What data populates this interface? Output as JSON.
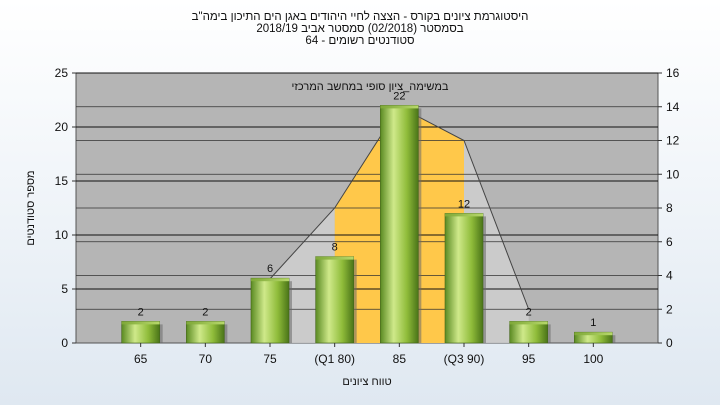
{
  "chart_data": {
    "type": "bar",
    "title_lines": [
      "היסטוגרמת ציונים בקורס - הצצה לחיי היהודים באגן הים התיכון בימה\"ב",
      "בסמסטר  (02/2018)  סמסטר אביב 2018/19",
      "סטודנטים רשומים - 64"
    ],
    "annotation": "במשימה_ציון סופי במחשב המרכזי",
    "categories": [
      "65",
      "70",
      "75",
      "(Q1 80)",
      "85",
      "(Q3 90)",
      "95",
      "100"
    ],
    "values": [
      2,
      2,
      6,
      8,
      22,
      12,
      2,
      1
    ],
    "ylabel": "מספר סטודנטים",
    "xlabel": "טווח ציונים",
    "ylim": [
      0,
      25
    ],
    "yticks": [
      0,
      5,
      10,
      15,
      20,
      25
    ],
    "y2lim": [
      0,
      16
    ],
    "y2ticks": [
      0,
      2,
      4,
      6,
      8,
      10,
      12,
      14,
      16
    ],
    "distribution_line": [
      {
        "x": "75",
        "y": 3.8
      },
      {
        "x": "(Q1 80)",
        "y": 8
      },
      {
        "x": "85",
        "y": 14
      },
      {
        "x": "(Q3 90)",
        "y": 12
      },
      {
        "x": "95",
        "y": 2
      }
    ],
    "grid": true,
    "legend": "none",
    "colors": {
      "bar": "#8fbc3a",
      "bar_dark": "#4e7a1c",
      "bar_light": "#d4ec8c",
      "iqr_fill": "#ffc84a",
      "plot_bg": "#b5b5b5",
      "grid": "#111111"
    }
  }
}
